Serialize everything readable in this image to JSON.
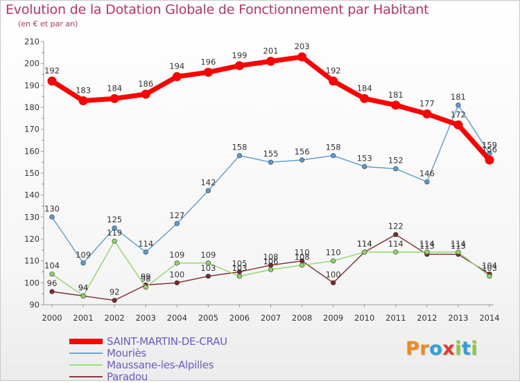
{
  "title": "Evolution de la Dotation Globale de Fonctionnement par Habitant",
  "subtitle": "(en € et par an)",
  "brand": {
    "text": "Proxiti",
    "letters": [
      {
        "ch": "P",
        "color": "#f08a1c"
      },
      {
        "ch": "r",
        "color": "#f08a1c"
      },
      {
        "ch": "o",
        "color": "#2f9fd8"
      },
      {
        "ch": "x",
        "color": "#e53b2c"
      },
      {
        "ch": "i",
        "color": "#8cc63f"
      },
      {
        "ch": "t",
        "color": "#2f9fd8"
      },
      {
        "ch": "i",
        "color": "#8cc63f"
      }
    ]
  },
  "legend": [
    {
      "label": "SAINT-MARTIN-DE-CRAU",
      "color": "#ff0000",
      "thick": true
    },
    {
      "label": "Mouriès",
      "color": "#6fa8d6",
      "thick": false
    },
    {
      "label": "Maussane-les-Alpilles",
      "color": "#9be07a",
      "thick": false
    },
    {
      "label": "Paradou",
      "color": "#8b3a3a",
      "thick": false
    }
  ],
  "chart_data": {
    "type": "line",
    "x": [
      "2000",
      "2001",
      "2002",
      "2003",
      "2004",
      "2005",
      "2006",
      "2007",
      "2008",
      "2009",
      "2010",
      "2011",
      "2012",
      "2013",
      "2014"
    ],
    "ylim": [
      90,
      210
    ],
    "yticks": [
      "90",
      "100",
      "110",
      "120",
      "130",
      "140",
      "150",
      "160",
      "170",
      "180",
      "190",
      "200",
      "210"
    ],
    "grid": false,
    "series": [
      {
        "name": "SAINT-MARTIN-DE-CRAU",
        "color": "#ff0000",
        "values": [
          192,
          183,
          184,
          186,
          194,
          196,
          199,
          201,
          203,
          192,
          184,
          181,
          177,
          172,
          156
        ],
        "labels": [
          "192",
          "183",
          "184",
          "186",
          "194",
          "196",
          "199",
          "201",
          "203",
          "192",
          "184",
          "181",
          "177",
          "172",
          "156"
        ]
      },
      {
        "name": "Mouriès",
        "color": "#5b9bd0",
        "values": [
          130,
          109,
          125,
          114,
          127,
          142,
          158,
          155,
          156,
          158,
          153,
          152,
          146,
          181,
          159
        ],
        "labels": [
          "130",
          "109",
          "125",
          "114",
          "127",
          "142",
          "158",
          "155",
          "156",
          "158",
          "153",
          "152",
          "146",
          "181",
          "159"
        ]
      },
      {
        "name": "Maussane-les-Alpilles",
        "color": "#8fd468",
        "values": [
          104,
          94,
          119,
          98,
          109,
          109,
          103,
          106,
          108,
          110,
          114,
          114,
          114,
          114,
          103
        ],
        "labels": [
          "104",
          "94",
          "119",
          "98",
          "109",
          "109",
          "103",
          "106",
          "108",
          "110",
          "114",
          "114",
          "114",
          "114",
          "103"
        ]
      },
      {
        "name": "Paradou",
        "color": "#7a2a2a",
        "values": [
          96,
          94,
          92,
          99,
          100,
          103,
          105,
          108,
          110,
          100,
          114,
          122,
          113,
          113,
          104
        ],
        "labels": [
          "96",
          "94",
          "92",
          "99",
          "100",
          "103",
          "105",
          "108",
          "110",
          "100",
          "114",
          "122",
          "113",
          "113",
          "104"
        ]
      }
    ]
  }
}
